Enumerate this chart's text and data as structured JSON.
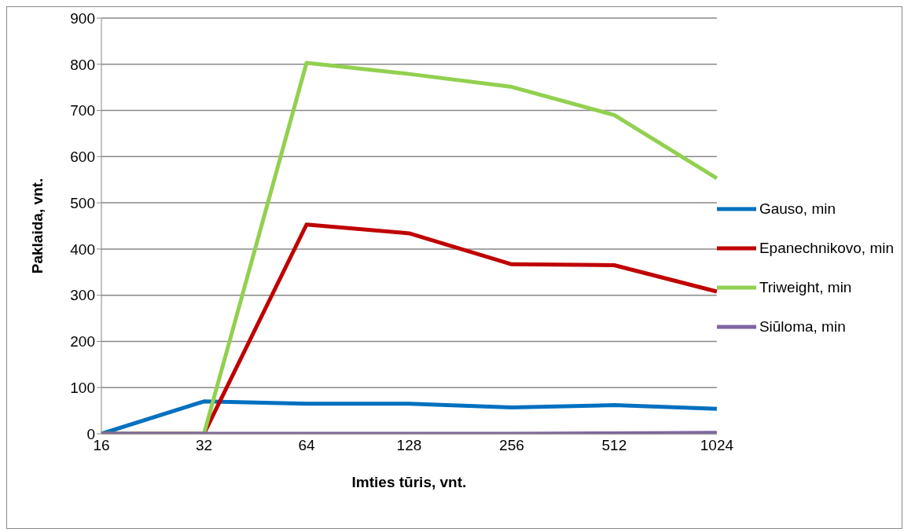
{
  "chart_data": {
    "type": "line",
    "xlabel": "Imties tūris, vnt.",
    "ylabel": "Paklaida, vnt.",
    "categories": [
      "16",
      "32",
      "64",
      "128",
      "256",
      "512",
      "1024"
    ],
    "series": [
      {
        "name": "Gauso, min",
        "color": "#0070c0",
        "values": [
          0,
          70,
          65,
          65,
          57,
          62,
          54
        ]
      },
      {
        "name": "Epanechnikovo, min",
        "color": "#c00000",
        "values": [
          0,
          0,
          453,
          434,
          367,
          365,
          308
        ]
      },
      {
        "name": "Triweight, min",
        "color": "#92d050",
        "values": [
          0,
          0,
          803,
          779,
          751,
          690,
          553
        ]
      },
      {
        "name": "Siūloma, min",
        "color": "#8064a2",
        "values": [
          0,
          0,
          0,
          0,
          0,
          1,
          2
        ]
      }
    ],
    "ylim": [
      0,
      900
    ],
    "yticks": [
      0,
      100,
      200,
      300,
      400,
      500,
      600,
      700,
      800,
      900
    ],
    "grid": "y",
    "legend": "right",
    "marker": "none",
    "line_style": "solid"
  }
}
